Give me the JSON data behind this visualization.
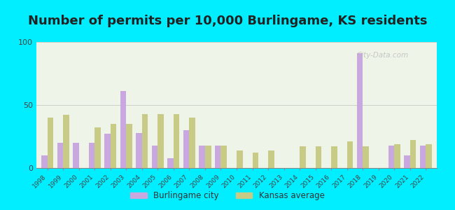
{
  "title": "Number of permits per 10,000 Burlingame, KS residents",
  "years": [
    1998,
    1999,
    2000,
    2001,
    2002,
    2003,
    2004,
    2005,
    2006,
    2007,
    2008,
    2009,
    2010,
    2011,
    2012,
    2013,
    2014,
    2015,
    2016,
    2017,
    2018,
    2019,
    2020,
    2021,
    2022
  ],
  "burlingame": [
    10,
    20,
    20,
    20,
    27,
    61,
    28,
    18,
    8,
    30,
    18,
    18,
    0,
    0,
    0,
    0,
    0,
    0,
    0,
    0,
    91,
    0,
    18,
    10,
    18
  ],
  "kansas": [
    40,
    42,
    0,
    32,
    35,
    35,
    43,
    43,
    43,
    40,
    18,
    18,
    14,
    12,
    14,
    0,
    17,
    17,
    17,
    21,
    17,
    0,
    19,
    22,
    19
  ],
  "burlingame_color": "#c9a8e0",
  "kansas_color": "#c8cb85",
  "outer_bg": "#00eeff",
  "plot_bg": "#eef5e8",
  "ylim": [
    0,
    100
  ],
  "yticks": [
    0,
    50,
    100
  ],
  "title_fontsize": 13,
  "legend_burlingame": "Burlingame city",
  "legend_kansas": "Kansas average",
  "watermark": "City-Data.com"
}
